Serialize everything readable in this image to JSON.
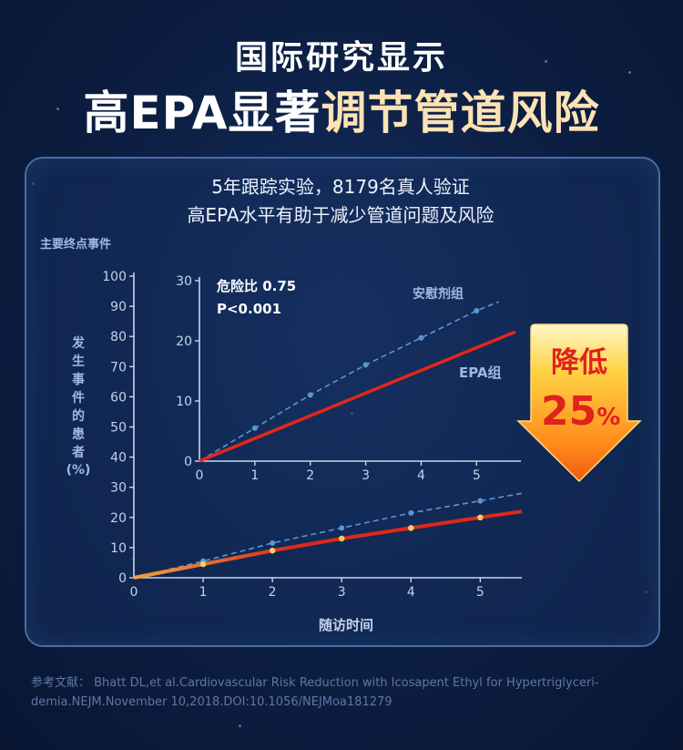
{
  "header": {
    "subtitle": "国际研究显示",
    "headline_prefix": "高EPA显著",
    "headline_highlight": "调节管道风险"
  },
  "panel": {
    "line1": "5年跟踪实验，8179名真人验证",
    "line2": "高EPA水平有助于减少管道问题及风险"
  },
  "callout": {
    "line1": "降低",
    "value": "25",
    "unit": "%"
  },
  "footnote": {
    "line1": "参考文献：  Bhatt DL,et al.Cardiovascular Risk Reduction with Icosapent Ethyl for Hypertriglyceri-",
    "line2": "demia.NEJM.November 10,2018.DOI:10.1056/NEJMoa181279"
  },
  "colors": {
    "placebo": "#5b96d4",
    "epa": "#e0281a",
    "epa_marker": "#f5d060",
    "axis": "#c9d5ee",
    "tick_text": "#c4d2ee",
    "label_text": "#9fb8e6"
  },
  "chart_data": [
    {
      "type": "line",
      "name": "main",
      "title": "主要终点事件",
      "xlabel": "随访时间",
      "ylabel": "发生事件的患者",
      "ylabel_unit": "(%)",
      "xlim": [
        0,
        5.6
      ],
      "ylim": [
        0,
        100
      ],
      "xticks": [
        0,
        1,
        2,
        3,
        4,
        5
      ],
      "yticks": [
        0,
        10,
        20,
        30,
        40,
        50,
        60,
        70,
        80,
        90,
        100
      ],
      "series": [
        {
          "name": "安慰剂组",
          "style": "dashed",
          "x": [
            0,
            1,
            2,
            3,
            4,
            5,
            5.6
          ],
          "y": [
            0,
            5.5,
            11.5,
            16.5,
            21.5,
            25.5,
            28
          ],
          "markers": [
            1,
            2,
            3,
            4,
            5
          ]
        },
        {
          "name": "EPA组",
          "style": "solid",
          "x": [
            0,
            1,
            2,
            3,
            4,
            5,
            5.6
          ],
          "y": [
            0,
            4.5,
            9,
            13,
            16.5,
            20,
            22
          ],
          "markers": [
            1,
            2,
            3,
            4,
            5
          ]
        }
      ]
    },
    {
      "type": "line",
      "name": "inset",
      "xlim": [
        0,
        5.8
      ],
      "ylim": [
        0,
        30
      ],
      "xticks": [
        0,
        1,
        2,
        3,
        4,
        5
      ],
      "yticks": [
        0,
        10,
        20,
        30
      ],
      "annotations": [
        "危险比 0.75",
        "P<0.001"
      ],
      "series": [
        {
          "name": "安慰剂组",
          "style": "dashed",
          "x": [
            0,
            1,
            2,
            3,
            4,
            5,
            5.4
          ],
          "y": [
            0,
            5.5,
            11,
            16,
            20.5,
            25,
            26.5
          ],
          "markers": [
            1,
            2,
            3,
            4,
            5
          ]
        },
        {
          "name": "EPA组",
          "style": "solid",
          "x": [
            0,
            5.7
          ],
          "y": [
            0,
            21.5
          ],
          "markers": []
        }
      ]
    }
  ]
}
